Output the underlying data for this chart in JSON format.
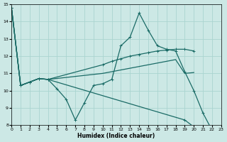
{
  "xlabel": "Humidex (Indice chaleur)",
  "xlim": [
    0,
    23
  ],
  "ylim": [
    8,
    15
  ],
  "yticks": [
    8,
    9,
    10,
    11,
    12,
    13,
    14,
    15
  ],
  "xticks": [
    0,
    1,
    2,
    3,
    4,
    5,
    6,
    7,
    8,
    9,
    10,
    11,
    12,
    13,
    14,
    15,
    16,
    17,
    18,
    19,
    20,
    21,
    22,
    23
  ],
  "bg_color": "#cce8e5",
  "grid_color": "#aad4d0",
  "line_color": "#1a6b66",
  "series": [
    {
      "x": [
        0,
        1,
        2,
        3,
        4,
        5,
        6,
        7,
        8,
        9,
        10,
        11,
        12,
        13,
        14,
        15,
        16,
        17,
        18,
        19,
        20,
        21,
        22
      ],
      "y": [
        14.8,
        10.3,
        10.5,
        10.7,
        10.65,
        10.1,
        9.5,
        8.3,
        9.3,
        10.3,
        10.4,
        10.65,
        12.6,
        13.1,
        14.5,
        13.5,
        12.6,
        12.4,
        12.3,
        11.1,
        10.0,
        8.7,
        7.7
      ],
      "marker": true
    },
    {
      "x": [
        0,
        1,
        2,
        3,
        4,
        10,
        11,
        12,
        13,
        14,
        15,
        16,
        17,
        18,
        19,
        20
      ],
      "y": [
        14.8,
        10.3,
        10.5,
        10.7,
        10.65,
        11.5,
        11.7,
        11.85,
        12.0,
        12.1,
        12.2,
        12.3,
        12.35,
        12.4,
        12.4,
        12.3
      ],
      "marker": true
    },
    {
      "x": [
        0,
        1,
        2,
        3,
        4,
        10,
        11,
        12,
        13,
        14,
        15,
        16,
        17,
        18,
        19,
        20
      ],
      "y": [
        14.8,
        10.3,
        10.5,
        10.7,
        10.65,
        11.0,
        11.1,
        11.2,
        11.3,
        11.4,
        11.5,
        11.6,
        11.7,
        11.8,
        11.0,
        11.05
      ],
      "marker": false
    },
    {
      "x": [
        0,
        1,
        2,
        3,
        4,
        19,
        20,
        21,
        22
      ],
      "y": [
        14.8,
        10.3,
        10.5,
        10.7,
        10.65,
        8.3,
        7.9,
        7.5,
        7.7
      ],
      "marker": true
    }
  ]
}
